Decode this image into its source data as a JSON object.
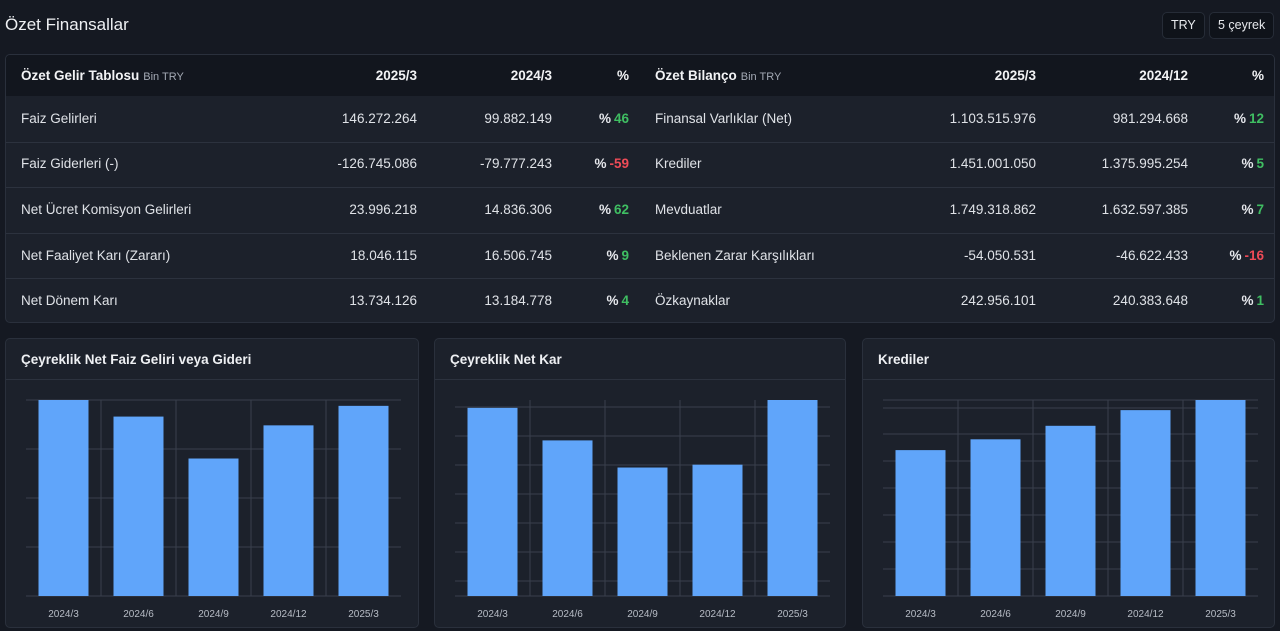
{
  "header": {
    "title": "Özet Finansallar",
    "currency_btn": "TRY",
    "period_btn": "5 çeyrek"
  },
  "income": {
    "title": "Özet Gelir Tablosu",
    "unit": "Bin TRY",
    "col1": "2025/3",
    "col2": "2024/3",
    "col3": "%",
    "rows": [
      {
        "label": "Faiz Gelirleri",
        "v1": "146.272.264",
        "v2": "99.882.149",
        "pct_symbol": "%",
        "pct": "46",
        "sign": "pos"
      },
      {
        "label": "Faiz Giderleri (-)",
        "v1": "-126.745.086",
        "v2": "-79.777.243",
        "pct_symbol": "%",
        "pct": "-59",
        "sign": "neg"
      },
      {
        "label": "Net Ücret Komisyon Gelirleri",
        "v1": "23.996.218",
        "v2": "14.836.306",
        "pct_symbol": "%",
        "pct": "62",
        "sign": "pos"
      },
      {
        "label": "Net Faaliyet Karı (Zararı)",
        "v1": "18.046.115",
        "v2": "16.506.745",
        "pct_symbol": "%",
        "pct": "9",
        "sign": "pos"
      },
      {
        "label": "Net Dönem Karı",
        "v1": "13.734.126",
        "v2": "13.184.778",
        "pct_symbol": "%",
        "pct": "4",
        "sign": "pos"
      }
    ]
  },
  "balance": {
    "title": "Özet Bilanço",
    "unit": "Bin TRY",
    "col1": "2025/3",
    "col2": "2024/12",
    "col3": "%",
    "rows": [
      {
        "label": "Finansal Varlıklar (Net)",
        "v1": "1.103.515.976",
        "v2": "981.294.668",
        "pct_symbol": "%",
        "pct": "12",
        "sign": "pos"
      },
      {
        "label": "Krediler",
        "v1": "1.451.001.050",
        "v2": "1.375.995.254",
        "pct_symbol": "%",
        "pct": "5",
        "sign": "pos"
      },
      {
        "label": "Mevduatlar",
        "v1": "1.749.318.862",
        "v2": "1.632.597.385",
        "pct_symbol": "%",
        "pct": "7",
        "sign": "pos"
      },
      {
        "label": "Beklenen Zarar Karşılıkları",
        "v1": "-54.050.531",
        "v2": "-46.622.433",
        "pct_symbol": "%",
        "pct": "-16",
        "sign": "neg"
      },
      {
        "label": "Özkaynaklar",
        "v1": "242.956.101",
        "v2": "240.383.648",
        "pct_symbol": "%",
        "pct": "1",
        "sign": "pos"
      }
    ]
  },
  "colors": {
    "bar": "#60a5fa",
    "positive": "#3fbe62",
    "negative": "#ee4b57",
    "grid": "#3a404c"
  },
  "chart_data": [
    {
      "type": "bar",
      "title": "Çeyreklik Net Faiz Geliri veya Gideri",
      "categories": [
        "2024/3",
        "2024/6",
        "2024/9",
        "2024/12",
        "2025/3"
      ],
      "values": [
        20.1,
        18.4,
        14.1,
        17.5,
        19.5
      ],
      "ylim": [
        0,
        20.1
      ],
      "grid": true
    },
    {
      "type": "bar",
      "title": "Çeyreklik Net Kar",
      "categories": [
        "2024/3",
        "2024/6",
        "2024/9",
        "2024/12",
        "2025/3"
      ],
      "values": [
        13.18,
        10.9,
        9.0,
        9.2,
        13.73
      ],
      "ylim": [
        0,
        13.73
      ],
      "grid": true
    },
    {
      "type": "bar",
      "title": "Krediler",
      "categories": [
        "2024/3",
        "2024/6",
        "2024/9",
        "2024/12",
        "2025/3"
      ],
      "values": [
        1.08,
        1.16,
        1.26,
        1.376,
        1.451
      ],
      "ylim": [
        0,
        1.451
      ],
      "grid": true
    }
  ]
}
